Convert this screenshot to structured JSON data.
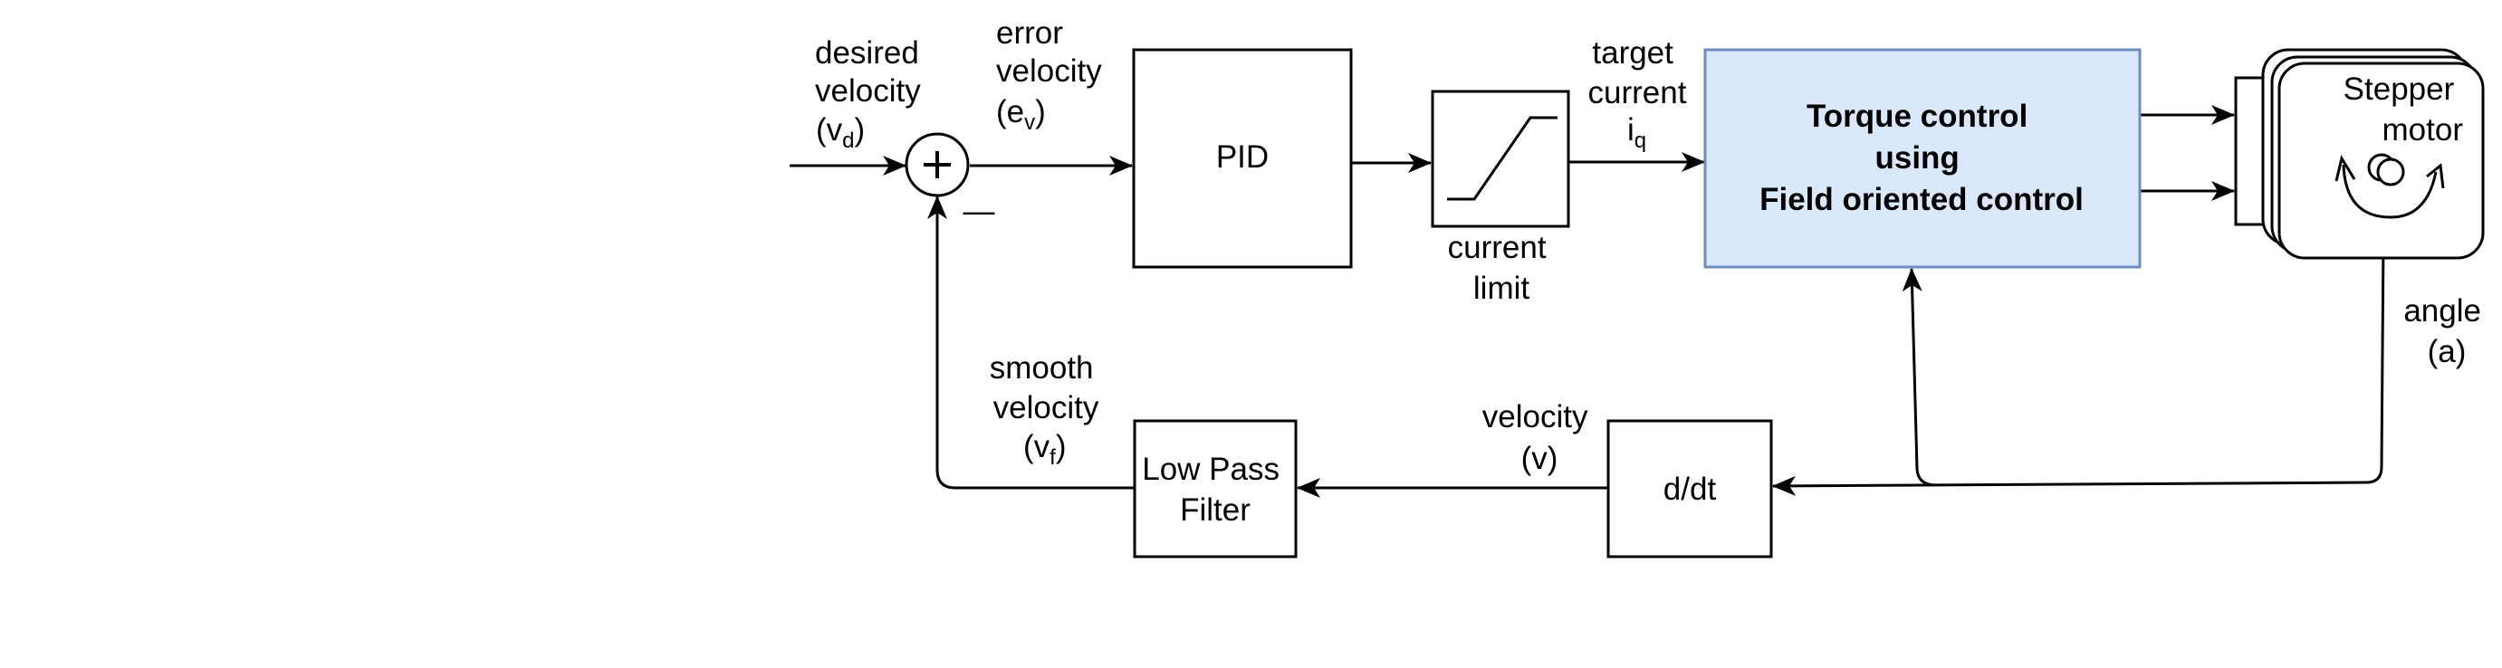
{
  "colors": {
    "stroke": "#000000",
    "foc_fill": "#dae8fc",
    "foc_stroke": "#6c8ebf",
    "background": "#ffffff"
  },
  "icons": {
    "summing_junction": "plus-in-circle",
    "current_limit": "saturation-curve",
    "motor_rotation": "curved-double-arrow"
  },
  "labels": {
    "desired": {
      "line1": "desired",
      "line2": "velocity",
      "open": "(v",
      "sub": "d",
      "close": ")"
    },
    "error": {
      "line1": "error",
      "line2": "velocity",
      "open": "(e",
      "sub": "v",
      "close": ")"
    },
    "target": {
      "line1": "target",
      "line2": "current",
      "main": "i",
      "sub": "q"
    },
    "current_limit": {
      "line1": "current",
      "line2": "limit"
    },
    "angle": {
      "line1": "angle",
      "line2": "(a)"
    },
    "velocity": {
      "line1": "velocity",
      "line2": "(v)"
    },
    "smooth": {
      "line1": "smooth",
      "line2": "velocity",
      "open": "(v",
      "sub": "f",
      "close": ")"
    },
    "minus_sign": "—"
  },
  "blocks": {
    "pid": "PID",
    "foc": {
      "line1": "Torque control",
      "line2": "using",
      "line3": "Field oriented control"
    },
    "stepper": {
      "line1": "Stepper",
      "line2": "motor"
    },
    "ddt": "d/dt",
    "lpf": {
      "line1": "Low Pass",
      "line2": "Filter"
    }
  }
}
